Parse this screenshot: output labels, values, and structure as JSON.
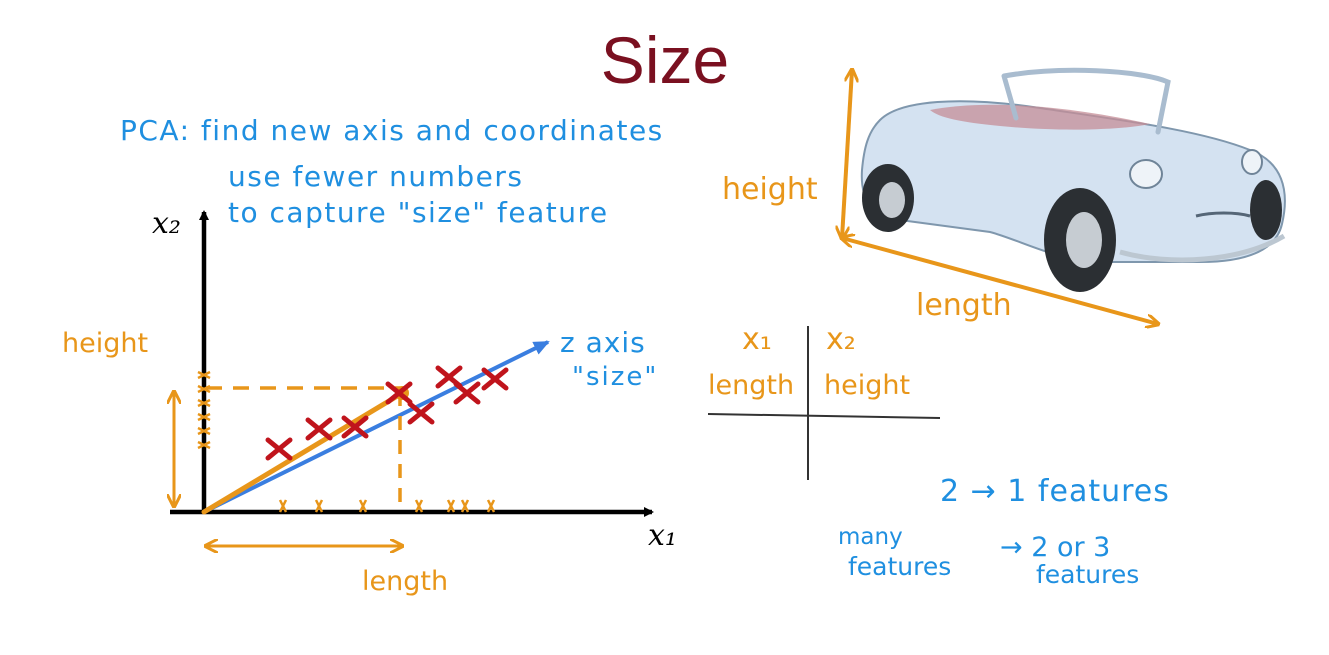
{
  "title": "Size",
  "notes": {
    "pca_line1": "PCA: find new axis and coordinates",
    "pca_line2": "use fewer numbers",
    "pca_line3": "to capture \"size\" feature"
  },
  "plot": {
    "x_axis_label": "x₁",
    "y_axis_label": "x₂",
    "height_label": "height",
    "length_label": "length",
    "z_axis_label": "z axis",
    "z_axis_sublabel": "\"size\""
  },
  "car": {
    "height_label": "height",
    "length_label": "length"
  },
  "table": {
    "col1_header": "x₁",
    "col2_header": "x₂",
    "col1_value": "length",
    "col2_value": "height"
  },
  "summary": {
    "line1": "2 → 1 features",
    "line2a": "many",
    "line2b": "features",
    "line2c": "→ 2 or 3",
    "line2d": "features"
  },
  "colors": {
    "title": "#7a1020",
    "notes": "#1f8fe0",
    "annotations": "#e8961a",
    "points": "#c0141c",
    "axes": "#000000"
  },
  "icons": {
    "car": "convertible-car-icon"
  }
}
